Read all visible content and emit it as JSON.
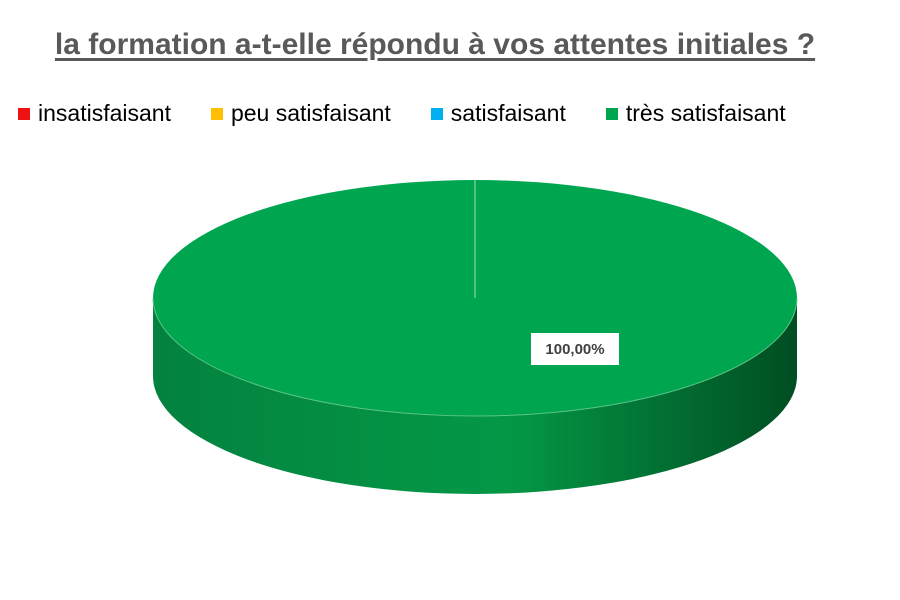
{
  "chart_data": {
    "type": "pie",
    "title": "la formation a-t-elle répondu à vos attentes initiales ?",
    "legend_position": "top",
    "three_d": true,
    "categories": [
      "insatisfaisant",
      "peu satisfaisant",
      "satisfaisant",
      "très satisfaisant"
    ],
    "values": [
      0,
      0,
      0,
      100
    ],
    "colors": [
      "#ee1111",
      "#ffc000",
      "#00b0f0",
      "#00a550"
    ],
    "data_labels": [
      "",
      "",
      "",
      "100,00%"
    ]
  }
}
